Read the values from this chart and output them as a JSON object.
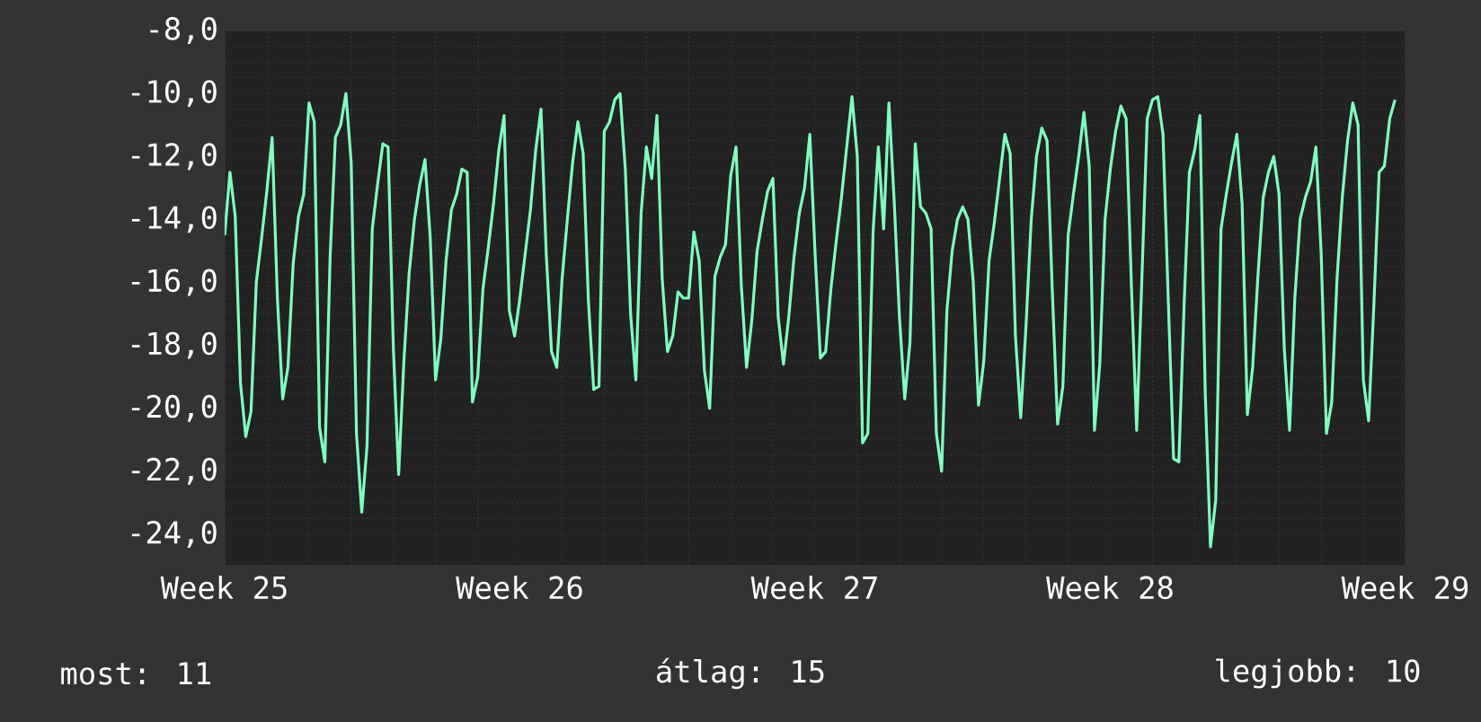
{
  "chart_data": {
    "type": "line",
    "categories": [
      "Week 25",
      null,
      null,
      null,
      null,
      null,
      null,
      null,
      null,
      null,
      null,
      null,
      null,
      null,
      null,
      null,
      null,
      null,
      null,
      null,
      null,
      null,
      null,
      null,
      null,
      null,
      null,
      null,
      null,
      null,
      null,
      null,
      null,
      null,
      null,
      null,
      null,
      null,
      null,
      null,
      null,
      null,
      null,
      null,
      null,
      null,
      null,
      null,
      null,
      null,
      null,
      null,
      null,
      null,
      null,
      null,
      "Week 26",
      null,
      null,
      null,
      null,
      null,
      null,
      null,
      null,
      null,
      null,
      null,
      null,
      null,
      null,
      null,
      null,
      null,
      null,
      null,
      null,
      null,
      null,
      null,
      null,
      null,
      null,
      null,
      null,
      null,
      null,
      null,
      null,
      null,
      null,
      null,
      null,
      null,
      null,
      null,
      null,
      null,
      null,
      null,
      null,
      null,
      null,
      null,
      null,
      null,
      null,
      null,
      null,
      null,
      null,
      null,
      "Week 27",
      null,
      null,
      null,
      null,
      null,
      null,
      null,
      null,
      null,
      null,
      null,
      null,
      null,
      null,
      null,
      null,
      null,
      null,
      null,
      null,
      null,
      null,
      null,
      null,
      null,
      null,
      null,
      null,
      null,
      null,
      null,
      null,
      null,
      null,
      null,
      null,
      null,
      null,
      null,
      null,
      null,
      null,
      null,
      null,
      null,
      null,
      null,
      null,
      null,
      null,
      null,
      null,
      null,
      null,
      null,
      "Week 28",
      null,
      null,
      null,
      null,
      null,
      null,
      null,
      null,
      null,
      null,
      null,
      null,
      null,
      null,
      null,
      null,
      null,
      null,
      null,
      null,
      null,
      null,
      null,
      null,
      null,
      null,
      null,
      null,
      null,
      null,
      null,
      null,
      null,
      null,
      null,
      null,
      null,
      null,
      null,
      null,
      null,
      null,
      null,
      null,
      null,
      null,
      null,
      null,
      null,
      null,
      null,
      null,
      null,
      null,
      null,
      "Week 29"
    ],
    "series": [
      {
        "color": "#80ffbf",
        "values": [
          -14.5,
          -12.5,
          -13.9,
          -19.2,
          -20.9,
          -20.1,
          -16.0,
          -14.6,
          -13.1,
          -11.4,
          -16.5,
          -19.7,
          -18.7,
          -15.4,
          -13.9,
          -13.2,
          -10.3,
          -10.9,
          -20.6,
          -21.7,
          -15.2,
          -11.4,
          -11.0,
          -10.0,
          -12.2,
          -20.8,
          -23.3,
          -21.2,
          -14.3,
          -12.9,
          -11.6,
          -11.7,
          -18.1,
          -22.1,
          -18.5,
          -15.7,
          -14.0,
          -12.9,
          -12.1,
          -14.6,
          -19.1,
          -17.8,
          -15.3,
          -13.7,
          -13.2,
          -12.4,
          -12.5,
          -19.8,
          -19.0,
          -16.2,
          -14.9,
          -13.5,
          -11.8,
          -10.7,
          -16.9,
          -17.7,
          -16.5,
          -15.1,
          -13.7,
          -11.8,
          -10.5,
          -15.1,
          -18.2,
          -18.7,
          -15.9,
          -14.0,
          -12.2,
          -10.9,
          -11.9,
          -16.6,
          -19.4,
          -19.3,
          -11.2,
          -10.9,
          -10.2,
          -10.0,
          -12.4,
          -17.0,
          -19.1,
          -13.8,
          -11.7,
          -12.7,
          -10.7,
          -15.9,
          -18.2,
          -17.7,
          -16.3,
          -16.5,
          -16.5,
          -14.4,
          -15.3,
          -18.8,
          -20.0,
          -15.8,
          -15.2,
          -14.8,
          -12.6,
          -11.7,
          -16.1,
          -18.7,
          -17.2,
          -15.0,
          -14.0,
          -13.1,
          -12.7,
          -17.1,
          -18.6,
          -17.1,
          -15.2,
          -13.8,
          -13.0,
          -11.3,
          -15.1,
          -18.4,
          -18.2,
          -16.2,
          -14.7,
          -13.3,
          -11.7,
          -10.1,
          -12.0,
          -21.1,
          -20.8,
          -14.4,
          -11.7,
          -14.3,
          -10.3,
          -13.4,
          -17.1,
          -19.7,
          -17.9,
          -11.6,
          -13.6,
          -13.8,
          -14.3,
          -20.8,
          -22.0,
          -16.9,
          -15.0,
          -14.0,
          -13.6,
          -14.0,
          -16.0,
          -19.9,
          -18.5,
          -15.3,
          -14.1,
          -12.7,
          -11.3,
          -11.9,
          -17.7,
          -20.3,
          -17.4,
          -14.0,
          -12.0,
          -11.1,
          -11.5,
          -16.3,
          -20.5,
          -19.3,
          -14.5,
          -13.2,
          -12.0,
          -10.6,
          -12.3,
          -20.7,
          -18.6,
          -14.0,
          -12.4,
          -11.2,
          -10.4,
          -10.8,
          -16.1,
          -20.7,
          -15.8,
          -10.8,
          -10.2,
          -10.1,
          -11.3,
          -16.6,
          -21.6,
          -21.7,
          -16.7,
          -12.5,
          -11.8,
          -10.7,
          -19.5,
          -24.4,
          -22.9,
          -14.3,
          -13.2,
          -12.2,
          -11.3,
          -13.5,
          -20.2,
          -18.7,
          -15.8,
          -13.3,
          -12.5,
          -12.0,
          -13.2,
          -18.1,
          -20.7,
          -16.5,
          -14.0,
          -13.3,
          -12.8,
          -11.7,
          -15.1,
          -20.8,
          -19.8,
          -15.9,
          -13.3,
          -11.5,
          -10.3,
          -11.0,
          -19.1,
          -20.4,
          -16.7,
          -12.5,
          -12.3,
          -10.8,
          -10.2,
          null,
          null
        ]
      }
    ],
    "ylim": [
      -25,
      -8
    ],
    "yticks": [
      {
        "value": -8,
        "label": "-8,0"
      },
      {
        "value": -10,
        "label": "-10,0"
      },
      {
        "value": -12,
        "label": "-12,0"
      },
      {
        "value": -14,
        "label": "-14,0"
      },
      {
        "value": -16,
        "label": "-16,0"
      },
      {
        "value": -18,
        "label": "-18,0"
      },
      {
        "value": -20,
        "label": "-20,0"
      },
      {
        "value": -22,
        "label": "-22,0"
      },
      {
        "value": -24,
        "label": "-24,0"
      }
    ],
    "grid": true,
    "annotations": [
      "most: 11",
      "átlag: 15",
      "legjobb: 10"
    ]
  }
}
